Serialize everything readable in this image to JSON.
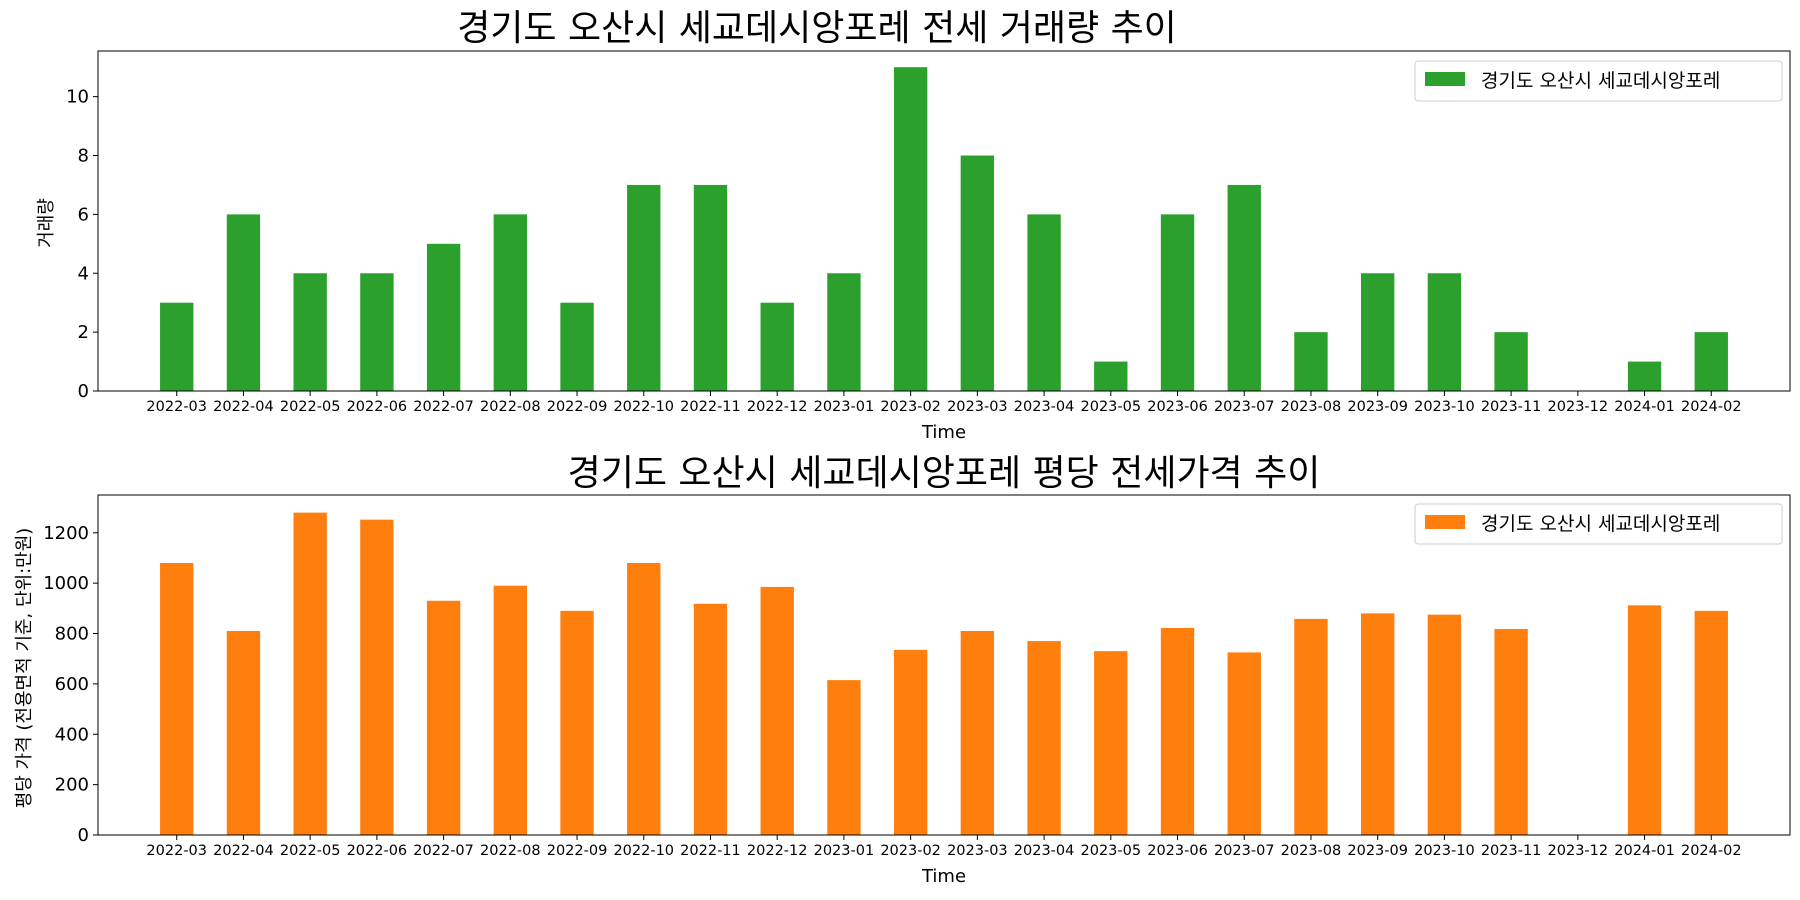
{
  "chart_data": [
    {
      "type": "bar",
      "title": "경기도 오산시 세교데시앙포레 전세 거래량 추이",
      "xlabel": "Time",
      "ylabel": "거래량",
      "categories": [
        "2022-03",
        "2022-04",
        "2022-05",
        "2022-06",
        "2022-07",
        "2022-08",
        "2022-09",
        "2022-10",
        "2022-11",
        "2022-12",
        "2023-01",
        "2023-02",
        "2023-03",
        "2023-04",
        "2023-05",
        "2023-06",
        "2023-07",
        "2023-08",
        "2023-09",
        "2023-10",
        "2023-11",
        "2023-12",
        "2024-01",
        "2024-02"
      ],
      "series": [
        {
          "name": "경기도 오산시 세교데시앙포레",
          "color": "#2ca02c",
          "values": [
            3,
            6,
            4,
            4,
            5,
            6,
            3,
            7,
            7,
            3,
            4,
            11,
            8,
            6,
            1,
            6,
            7,
            2,
            4,
            4,
            2,
            0,
            1,
            2
          ]
        }
      ],
      "ylim": [
        0,
        11.55
      ],
      "yticks": [
        0,
        2,
        4,
        6,
        8,
        10
      ],
      "grid": false,
      "legend": "top-right"
    },
    {
      "type": "bar",
      "title": "경기도 오산시 세교데시앙포레 평당 전세가격 추이",
      "xlabel": "Time",
      "ylabel": "평당 가격 (전용면적 기준, 단위:만원)",
      "categories": [
        "2022-03",
        "2022-04",
        "2022-05",
        "2022-06",
        "2022-07",
        "2022-08",
        "2022-09",
        "2022-10",
        "2022-11",
        "2022-12",
        "2023-01",
        "2023-02",
        "2023-03",
        "2023-04",
        "2023-05",
        "2023-06",
        "2023-07",
        "2023-08",
        "2023-09",
        "2023-10",
        "2023-11",
        "2023-12",
        "2024-01",
        "2024-02"
      ],
      "series": [
        {
          "name": "경기도 오산시 세교데시앙포레",
          "color": "#ff7f0e",
          "values": [
            1080,
            810,
            1280,
            1252,
            930,
            990,
            890,
            1080,
            918,
            985,
            615,
            735,
            810,
            770,
            730,
            822,
            725,
            858,
            880,
            875,
            818,
            null,
            912,
            890
          ]
        }
      ],
      "ylim": [
        0,
        1350
      ],
      "yticks": [
        0,
        200,
        400,
        600,
        800,
        1000,
        1200
      ],
      "grid": false,
      "legend": "top-right"
    }
  ]
}
